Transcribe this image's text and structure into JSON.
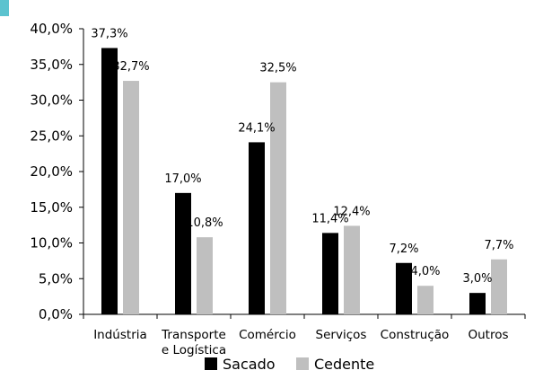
{
  "chart_data": {
    "type": "bar",
    "categories": [
      [
        "Indústria"
      ],
      [
        "Transporte",
        "e Logística"
      ],
      [
        "Comércio"
      ],
      [
        "Serviços"
      ],
      [
        "Construção"
      ],
      [
        "Outros"
      ]
    ],
    "series": [
      {
        "name": "Sacado",
        "color": "#000000",
        "values": [
          37.3,
          17.0,
          24.1,
          11.4,
          7.2,
          3.0
        ],
        "labels": [
          "37,3%",
          "17,0%",
          "24,1%",
          "11,4%",
          "7,2%",
          "3,0%"
        ]
      },
      {
        "name": "Cedente",
        "color": "#bfbfbf",
        "values": [
          32.7,
          10.8,
          32.5,
          12.4,
          4.0,
          7.7
        ],
        "labels": [
          "32,7%",
          "10,8%",
          "32,5%",
          "12,4%",
          "4,0%",
          "7,7%"
        ]
      }
    ],
    "yticks": [
      0,
      5,
      10,
      15,
      20,
      25,
      30,
      35,
      40
    ],
    "ytick_labels": [
      "0,0%",
      "5,0%",
      "10,0%",
      "15,0%",
      "20,0%",
      "25,0%",
      "30,0%",
      "35,0%",
      "40,0%"
    ],
    "ylim": [
      0,
      40
    ],
    "grid": false,
    "legend_position": "bottom",
    "title": "",
    "xlabel": "",
    "ylabel": "",
    "corner_marker_color": "#5bc3cf"
  }
}
